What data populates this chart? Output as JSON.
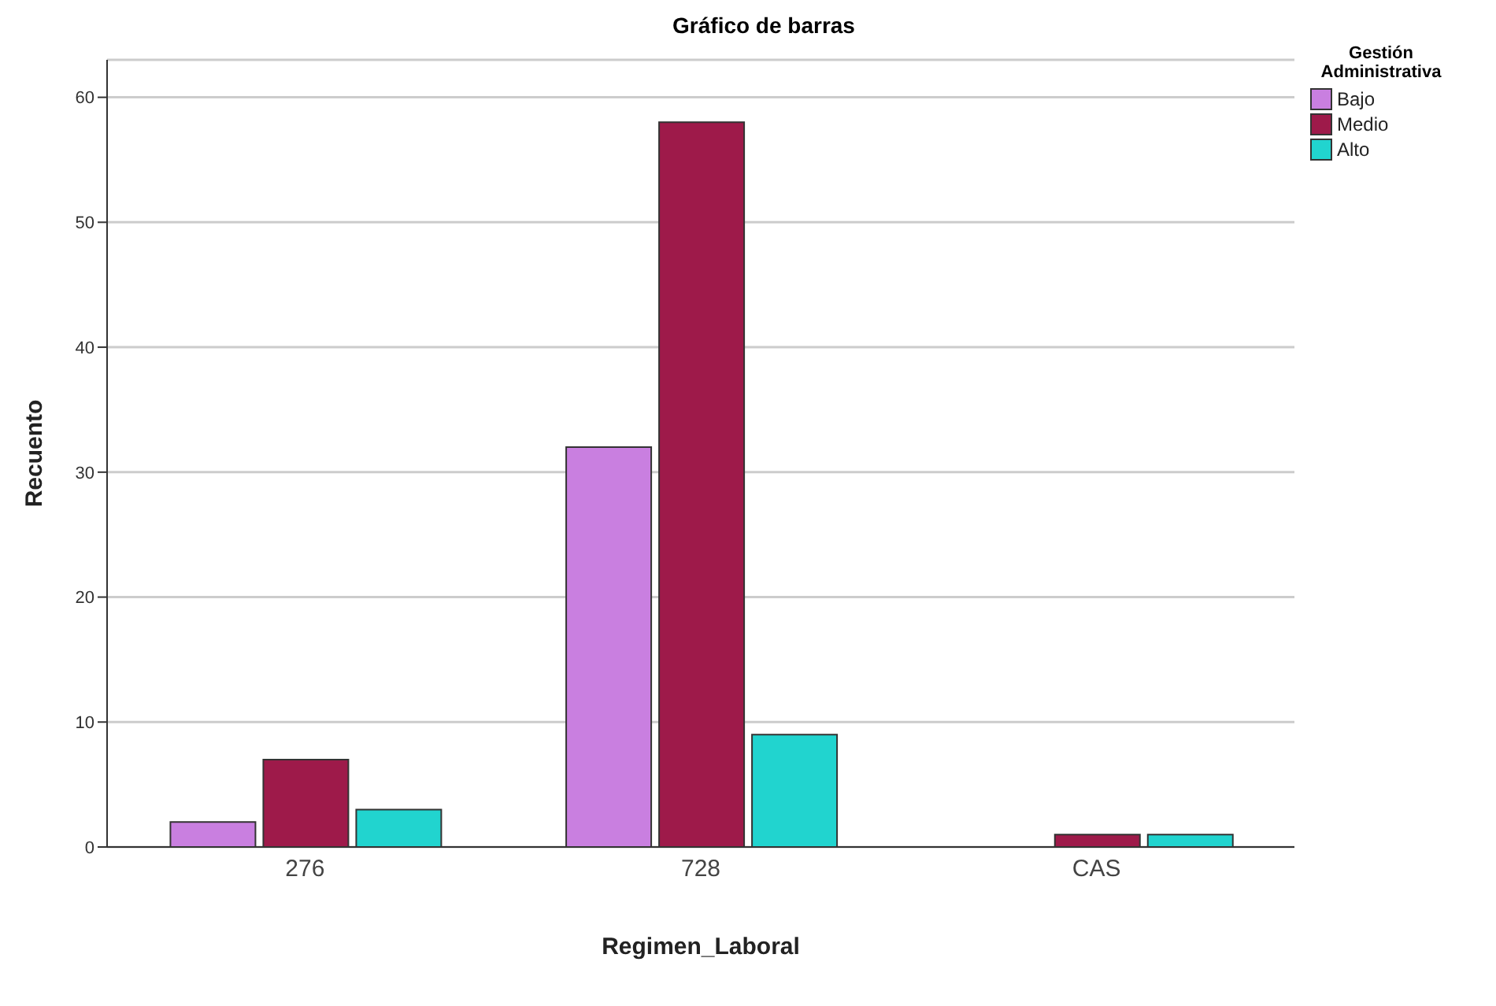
{
  "chart_data": {
    "type": "bar",
    "title": "Gráfico de barras",
    "xlabel": "Regimen_Laboral",
    "ylabel": "Recuento",
    "legend_title": "Gestión Administrativa",
    "categories": [
      "276",
      "728",
      "CAS"
    ],
    "series": [
      {
        "name": "Bajo",
        "color": "#c97fe0",
        "values": [
          2,
          32,
          0
        ]
      },
      {
        "name": "Medio",
        "color": "#9e1a4a",
        "values": [
          7,
          58,
          1
        ]
      },
      {
        "name": "Alto",
        "color": "#21d4cf",
        "values": [
          3,
          9,
          1
        ]
      }
    ],
    "ylim": [
      0,
      63
    ],
    "yticks": [
      0,
      10,
      20,
      30,
      40,
      50,
      60
    ],
    "grid": "y",
    "legend": "top right"
  }
}
